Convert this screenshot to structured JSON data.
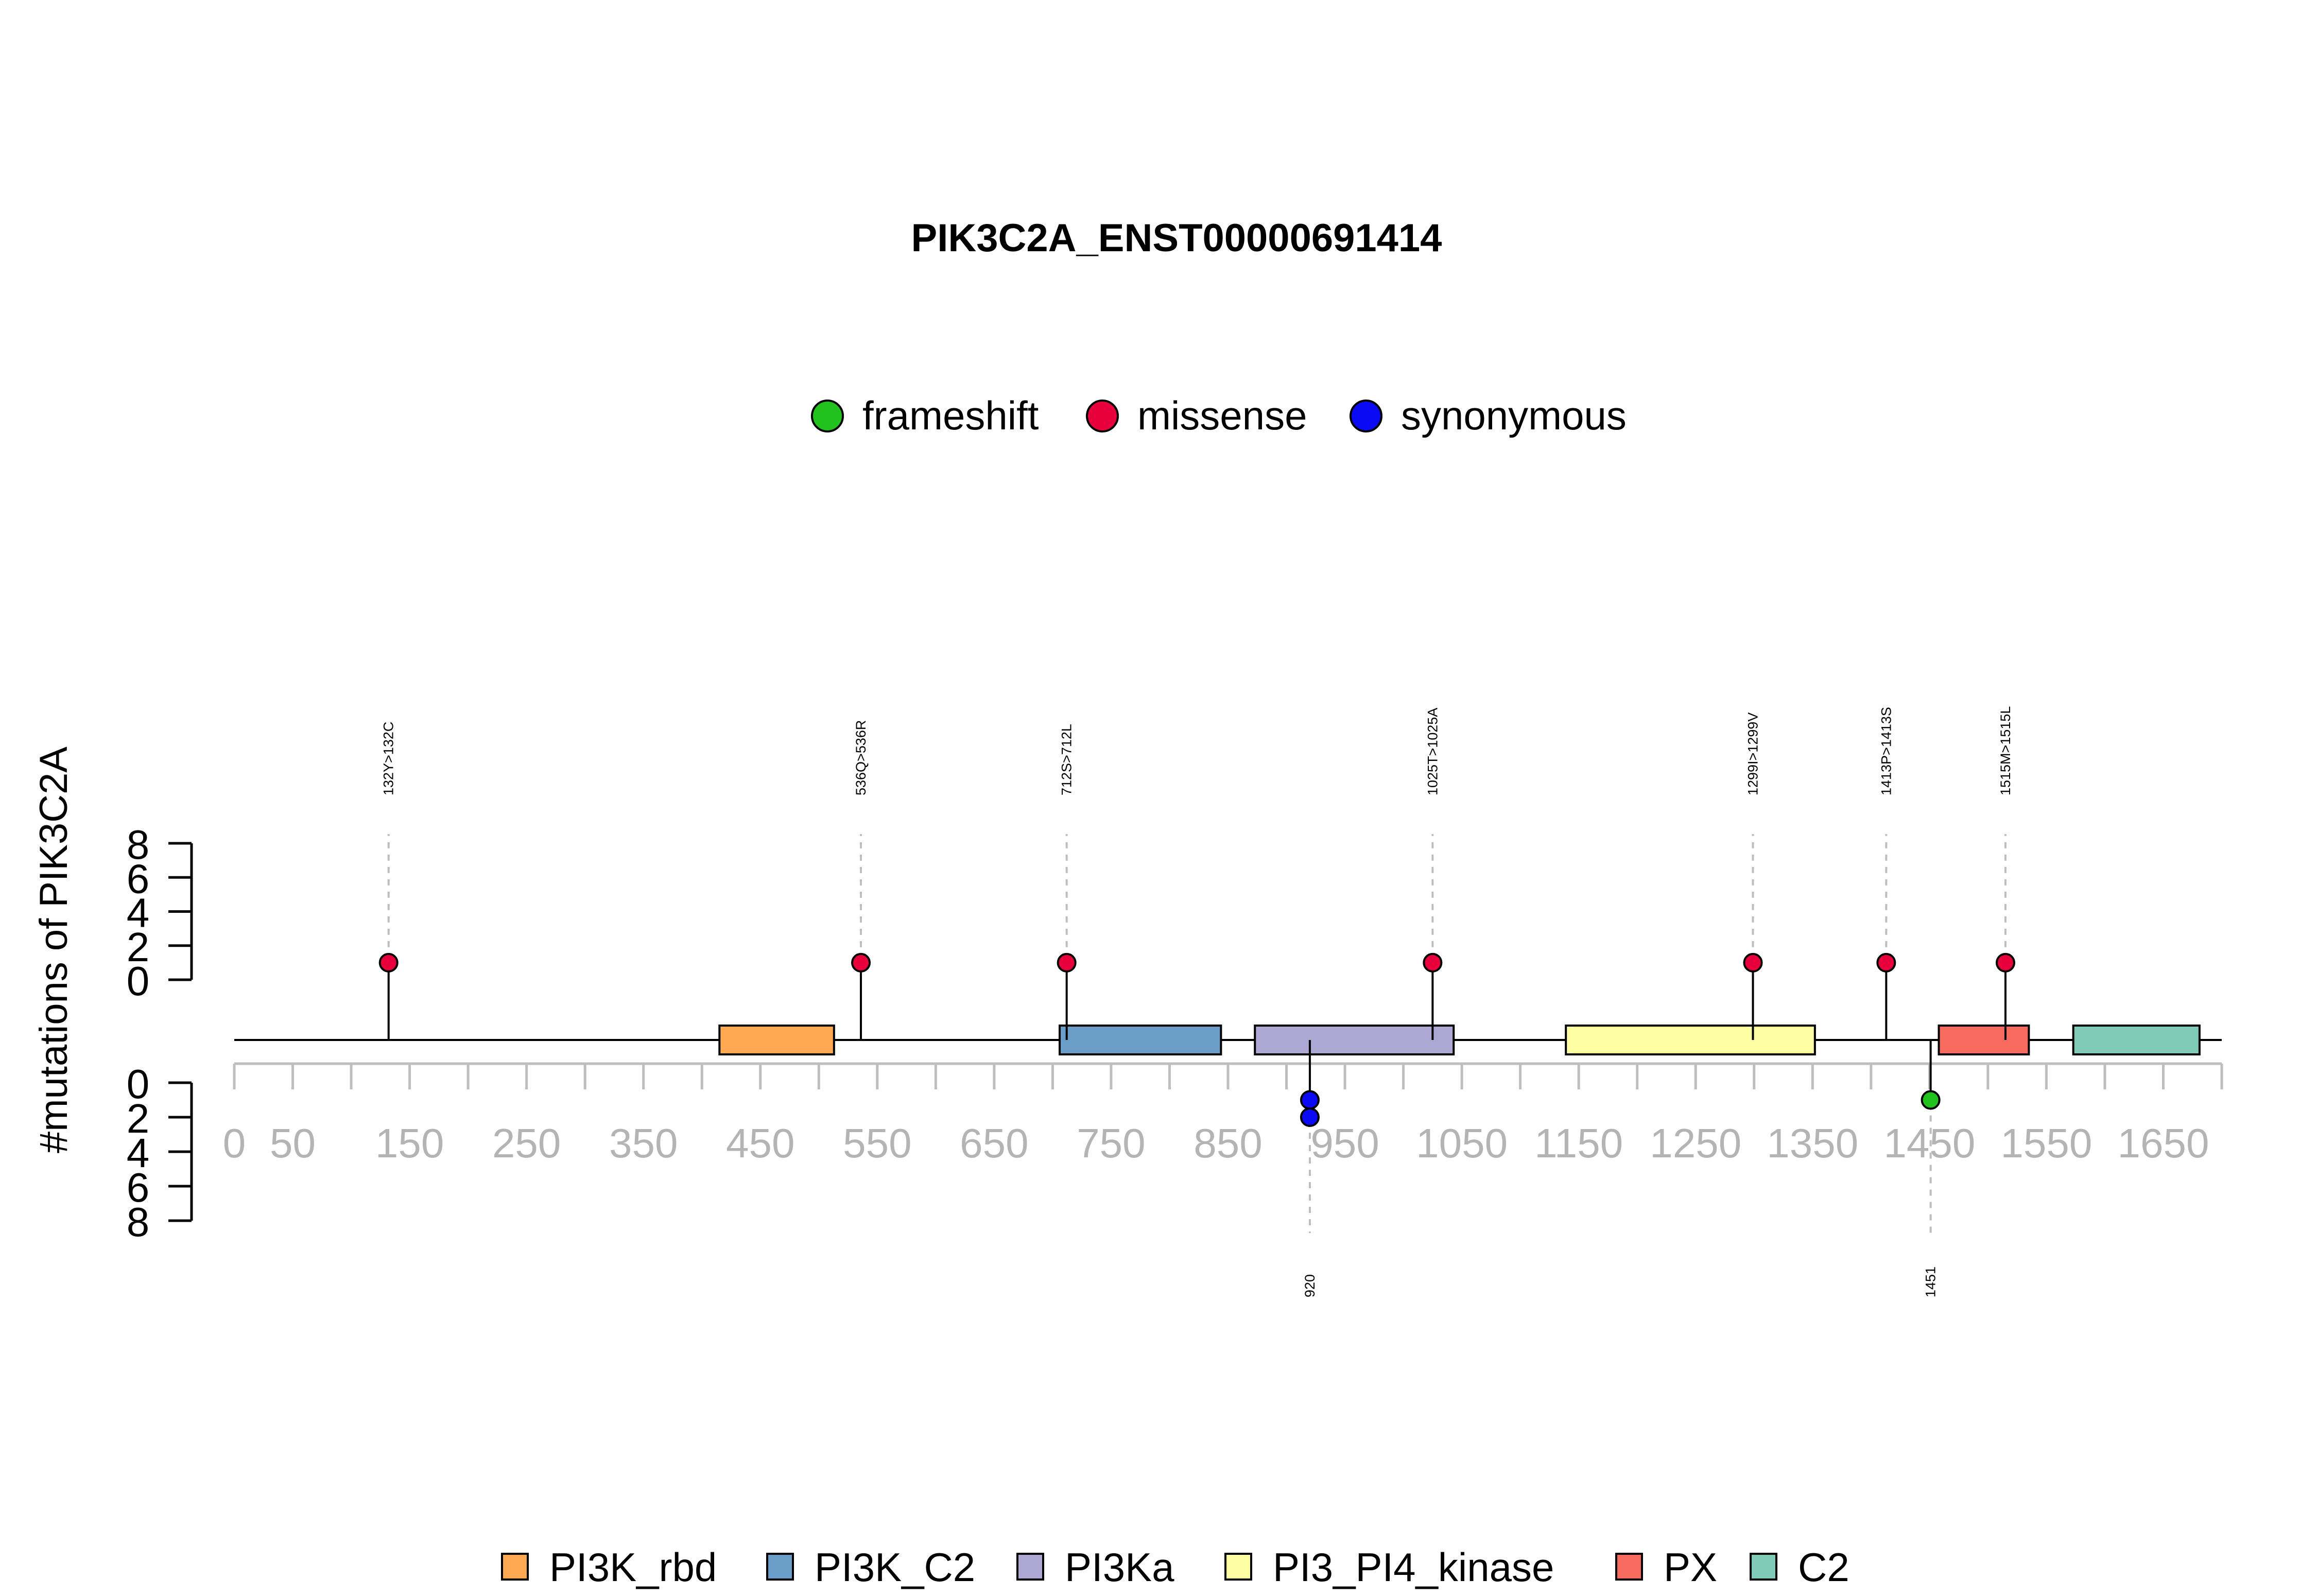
{
  "chart_data": {
    "type": "lollipop",
    "title": "PIK3C2A_ENST00000691414",
    "ylabel": "#mutations of PIK3C2A",
    "legend": {
      "placement": "top-center",
      "items": [
        {
          "label": "frameshift",
          "color": "#22C11E"
        },
        {
          "label": "missense",
          "color": "#E8003C"
        },
        {
          "label": "synonymous",
          "color": "#0A0AF5"
        }
      ]
    },
    "x_axis": {
      "range": [
        0,
        1700
      ],
      "ticks": [
        0,
        50,
        150,
        250,
        350,
        450,
        550,
        650,
        750,
        850,
        950,
        1050,
        1150,
        1250,
        1350,
        1450,
        1550,
        1650
      ],
      "minor_step": 50
    },
    "y_axis_top": {
      "range": [
        0,
        8
      ],
      "ticks": [
        0,
        2,
        4,
        6,
        8
      ]
    },
    "y_axis_bottom": {
      "range": [
        0,
        8
      ],
      "ticks": [
        0,
        2,
        4,
        6,
        8
      ]
    },
    "domains": [
      {
        "name": "PI3K_rbd",
        "start": 415,
        "end": 513,
        "color": "#FDAA52"
      },
      {
        "name": "PI3K_C2",
        "start": 706,
        "end": 844,
        "color": "#6A9EC8"
      },
      {
        "name": "PI3Ka",
        "start": 873,
        "end": 1043,
        "color": "#ADA7D3"
      },
      {
        "name": "PI3_PI4_kinase",
        "start": 1139,
        "end": 1352,
        "color": "#FDFDA2"
      },
      {
        "name": "PX",
        "start": 1458,
        "end": 1535,
        "color": "#F76A5E"
      },
      {
        "name": "C2",
        "start": 1573,
        "end": 1681,
        "color": "#7FCBB8"
      }
    ],
    "mutations_above": [
      {
        "position": 132,
        "label": "132Y>132C",
        "type": "missense",
        "count": 1
      },
      {
        "position": 536,
        "label": "536Q>536R",
        "type": "missense",
        "count": 1
      },
      {
        "position": 712,
        "label": "712S>712L",
        "type": "missense",
        "count": 1
      },
      {
        "position": 1025,
        "label": "1025T>1025A",
        "type": "missense",
        "count": 1
      },
      {
        "position": 1299,
        "label": "1299I>1299V",
        "type": "missense",
        "count": 1
      },
      {
        "position": 1413,
        "label": "1413P>1413S",
        "type": "missense",
        "count": 1
      },
      {
        "position": 1515,
        "label": "1515M>1515L",
        "type": "missense",
        "count": 1
      }
    ],
    "mutations_below": [
      {
        "position": 920,
        "label": "920",
        "type": "synonymous",
        "count": 2
      },
      {
        "position": 1451,
        "label": "1451",
        "type": "frameshift",
        "count": 1
      }
    ]
  }
}
